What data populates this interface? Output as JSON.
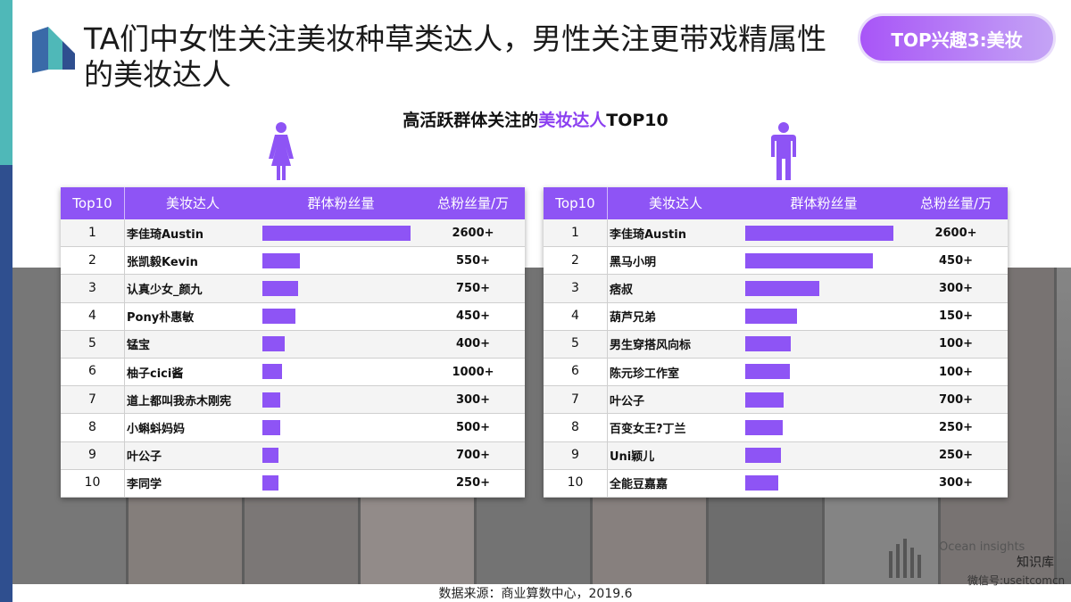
{
  "header": {
    "title": "TA们中女性关注美妆种草类达人，男性关注更带戏精属性的美妆达人",
    "badge": "TOP兴趣3:美妆"
  },
  "subtitle": {
    "prefix": "高活跃群体关注的",
    "highlight": "美妆达人",
    "suffix": "TOP10"
  },
  "columns": {
    "rank": "Top10",
    "name": "美妆达人",
    "bar": "群体粉丝量",
    "total": "总粉丝量/万"
  },
  "female": {
    "icon": "female-person-icon",
    "rows": [
      {
        "rank": "1",
        "name": "李佳琦Austin",
        "group": 1.0,
        "total": "2600+"
      },
      {
        "rank": "2",
        "name": "张凯毅Kevin",
        "group": 0.25,
        "total": "550+"
      },
      {
        "rank": "3",
        "name": "认真少女_颜九",
        "group": 0.24,
        "total": "750+"
      },
      {
        "rank": "4",
        "name": "Pony朴惠敏",
        "group": 0.22,
        "total": "450+"
      },
      {
        "rank": "5",
        "name": "锰宝",
        "group": 0.15,
        "total": "400+"
      },
      {
        "rank": "6",
        "name": "柚子cici酱",
        "group": 0.13,
        "total": "1000+"
      },
      {
        "rank": "7",
        "name": "道上都叫我赤木刚宪",
        "group": 0.12,
        "total": "300+"
      },
      {
        "rank": "8",
        "name": "小蝌蚪妈妈",
        "group": 0.12,
        "total": "500+"
      },
      {
        "rank": "9",
        "name": "叶公子",
        "group": 0.11,
        "total": "700+"
      },
      {
        "rank": "10",
        "name": "李同学",
        "group": 0.11,
        "total": "250+"
      }
    ]
  },
  "male": {
    "icon": "male-person-icon",
    "rows": [
      {
        "rank": "1",
        "name": "李佳琦Austin",
        "group": 1.0,
        "total": "2600+"
      },
      {
        "rank": "2",
        "name": "黑马小明",
        "group": 0.86,
        "total": "450+"
      },
      {
        "rank": "3",
        "name": "痞叔",
        "group": 0.5,
        "total": "300+"
      },
      {
        "rank": "4",
        "name": "葫芦兄弟",
        "group": 0.35,
        "total": "150+"
      },
      {
        "rank": "5",
        "name": "男生穿搭风向标",
        "group": 0.31,
        "total": "100+"
      },
      {
        "rank": "6",
        "name": "陈元珍工作室",
        "group": 0.3,
        "total": "100+"
      },
      {
        "rank": "7",
        "name": "叶公子",
        "group": 0.26,
        "total": "700+"
      },
      {
        "rank": "8",
        "name": "百变女王?丁兰",
        "group": 0.25,
        "total": "250+"
      },
      {
        "rank": "9",
        "name": "Uni颖儿",
        "group": 0.24,
        "total": "250+"
      },
      {
        "rank": "10",
        "name": "全能豆嘉嘉",
        "group": 0.22,
        "total": "300+"
      }
    ]
  },
  "source": "数据来源：商业算数中心，2019.6",
  "watermark": {
    "brand": "Ocean insights",
    "site": "知识库",
    "wechat": "微信号:useitcomcn"
  },
  "colors": {
    "accent": "#8e54f5",
    "teal": "#4fb8b8",
    "navy": "#2f4f8f"
  }
}
